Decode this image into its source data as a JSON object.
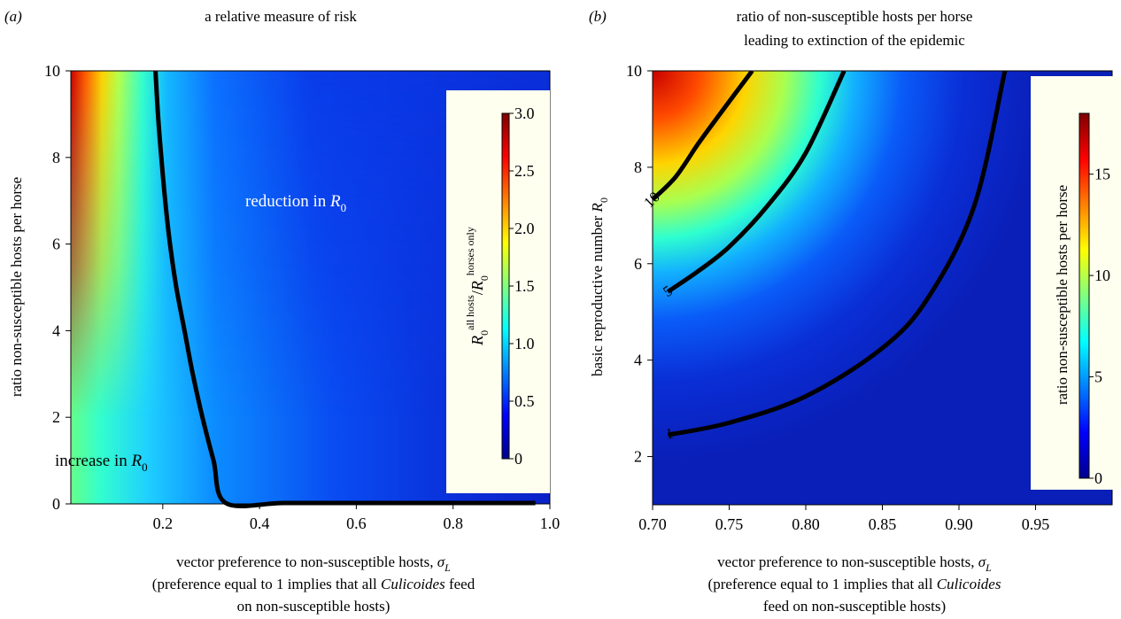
{
  "figure": {
    "panel_a_label": "(a)",
    "panel_b_label": "(b)"
  },
  "chart_data": [
    {
      "type": "heatmap",
      "panel": "(a)",
      "title": "a relative measure of risk",
      "xlabel": "vector preference to non-susceptible hosts, σL",
      "xlabel_lines": [
        "vector preference to non-susceptible hosts, σ_L",
        "(preference equal to 1 implies that all Culicoides feed",
        "on non-susceptible hosts)"
      ],
      "ylabel": "ratio non-susceptible hosts per horse",
      "xlim": [
        0.01,
        1.0
      ],
      "ylim": [
        0,
        10
      ],
      "xticks": [
        "0.2",
        "0.4",
        "0.6",
        "0.8",
        "1.0"
      ],
      "xtick_values": [
        0.2,
        0.4,
        0.6,
        0.8,
        1.0
      ],
      "yticks": [
        "0",
        "2",
        "4",
        "6",
        "8",
        "10"
      ],
      "ytick_values": [
        0,
        2,
        4,
        6,
        8,
        10
      ],
      "colormap": "jet",
      "colorbar": {
        "label": "R0(all hosts)/R0(horses only)",
        "range": [
          0,
          3.0
        ],
        "ticks": [
          "0",
          "0.5",
          "1.0",
          "1.5",
          "2.0",
          "2.5",
          "3.0"
        ],
        "tick_values": [
          0,
          0.5,
          1.0,
          1.5,
          2.0,
          2.5,
          3.0
        ],
        "placement": "inside right"
      },
      "contour": {
        "level": 1.0,
        "points": [
          [
            0.185,
            10
          ],
          [
            0.19,
            9
          ],
          [
            0.197,
            8
          ],
          [
            0.205,
            7
          ],
          [
            0.215,
            6
          ],
          [
            0.228,
            5
          ],
          [
            0.245,
            4
          ],
          [
            0.262,
            3
          ],
          [
            0.282,
            2
          ],
          [
            0.305,
            1
          ],
          [
            0.33,
            0.02
          ],
          [
            0.45,
            0.02
          ],
          [
            0.6,
            0.02
          ],
          [
            0.8,
            0.02
          ],
          [
            0.97,
            0.02
          ]
        ]
      },
      "annotations": [
        {
          "text": "reduction in R0",
          "x": 0.5,
          "y": 6.55
        },
        {
          "text": "increase in R0",
          "x": 0.12,
          "y": 0.85
        }
      ]
    },
    {
      "type": "heatmap",
      "panel": "(b)",
      "title": "ratio of non-susceptible hosts per horse leading to extinction of the epidemic",
      "title_lines": [
        "ratio of non-susceptible hosts per horse",
        "leading to extinction of the epidemic"
      ],
      "xlabel": "vector preference to non-susceptible hosts, σL",
      "xlabel_lines": [
        "vector preference to non-susceptible hosts, σ_L",
        "(preference equal to 1 implies that all Culicoides",
        "feed on non-susceptible hosts)"
      ],
      "ylabel": "basic reproductive number R0",
      "xlim": [
        0.7,
        1.0
      ],
      "ylim": [
        1,
        10
      ],
      "xticks": [
        "0.70",
        "0.75",
        "0.80",
        "0.85",
        "0.90",
        "0.95"
      ],
      "xtick_values": [
        0.7,
        0.75,
        0.8,
        0.85,
        0.9,
        0.95
      ],
      "yticks": [
        "2",
        "4",
        "6",
        "8",
        "10"
      ],
      "ytick_values": [
        2,
        4,
        6,
        8,
        10
      ],
      "colormap": "jet",
      "colorbar": {
        "label": "ratio non-susceptible hosts per horse",
        "range": [
          0,
          18
        ],
        "ticks": [
          "0",
          "5",
          "10",
          "15"
        ],
        "tick_values": [
          0,
          5,
          10,
          15
        ],
        "placement": "inside right"
      },
      "contours": [
        {
          "label": "10",
          "points": [
            [
              0.7,
              7.33
            ],
            [
              0.715,
              7.8
            ],
            [
              0.73,
              8.5
            ],
            [
              0.745,
              9.15
            ],
            [
              0.765,
              10
            ]
          ]
        },
        {
          "label": "5",
          "points": [
            [
              0.71,
              5.42
            ],
            [
              0.73,
              5.85
            ],
            [
              0.75,
              6.35
            ],
            [
              0.775,
              7.2
            ],
            [
              0.8,
              8.3
            ],
            [
              0.825,
              10
            ]
          ]
        },
        {
          "label": "1",
          "points": [
            [
              0.71,
              2.45
            ],
            [
              0.75,
              2.7
            ],
            [
              0.8,
              3.25
            ],
            [
              0.85,
              4.25
            ],
            [
              0.88,
              5.3
            ],
            [
              0.91,
              7.2
            ],
            [
              0.93,
              10
            ]
          ]
        }
      ]
    }
  ]
}
